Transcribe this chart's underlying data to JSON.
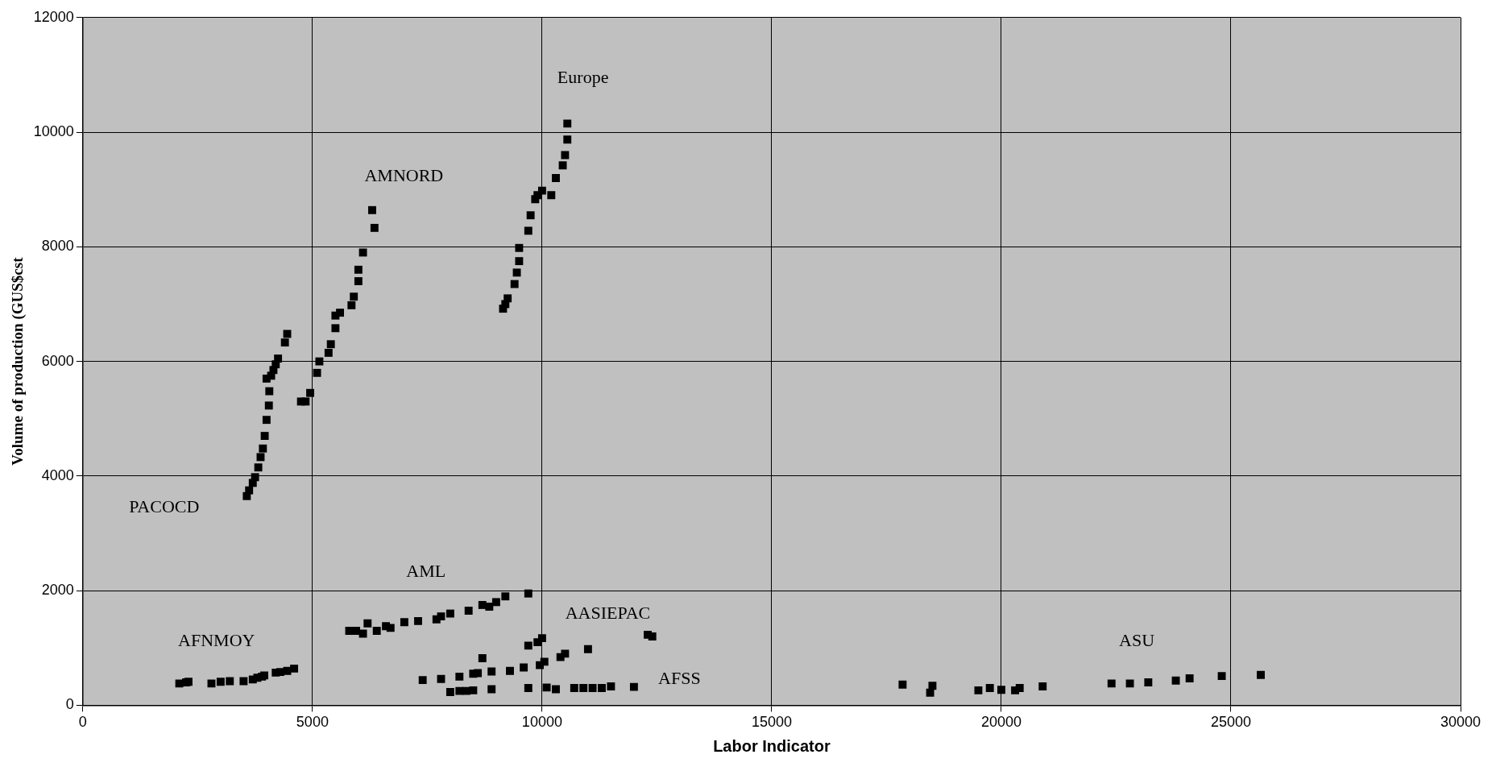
{
  "chart_data": {
    "type": "scatter",
    "xlabel": "Labor Indicator",
    "ylabel": "Volume of production (GUS$cst",
    "xlim": [
      0,
      30000
    ],
    "xticks": [
      0,
      5000,
      10000,
      15000,
      20000,
      25000,
      30000
    ],
    "ylim": [
      0,
      12000
    ],
    "yticks": [
      0,
      2000,
      4000,
      6000,
      8000,
      10000,
      12000
    ],
    "grid": true,
    "marker": "square",
    "series": [
      {
        "color": "#000000",
        "x": [
          3570,
          3620,
          3700,
          3750,
          3820,
          3870,
          3920,
          3960,
          4000,
          4050,
          4060,
          4000,
          4100,
          4150,
          4200,
          4250,
          4400,
          4450,
          4750,
          4850,
          4950,
          5100,
          5150,
          5350,
          5400,
          5500,
          5500,
          5600,
          5850,
          5900,
          6000,
          6000,
          6100,
          6350,
          6300,
          9150,
          9200,
          9250,
          9400,
          9450,
          9500,
          9500,
          9700,
          9750,
          9850,
          9900,
          10000,
          10200,
          10300,
          10450,
          10500,
          10550,
          10550,
          5800,
          5950,
          6100,
          6200,
          6400,
          6600,
          6700,
          7000,
          7300,
          7700,
          7800,
          8000,
          8400,
          8700,
          8850,
          9000,
          9200,
          9700,
          2100,
          2250,
          2300,
          2800,
          3000,
          3200,
          3500,
          3700,
          3800,
          3900,
          3950,
          4200,
          4300,
          4450,
          4600,
          7400,
          7800,
          8200,
          8500,
          8600,
          8700,
          8900,
          9300,
          9600,
          9700,
          9900,
          10000,
          9950,
          10050,
          10400,
          10500,
          11000,
          12300,
          12400,
          8000,
          8200,
          8350,
          8500,
          8900,
          9700,
          10100,
          10300,
          10700,
          10900,
          11100,
          11300,
          11500,
          12000,
          17850,
          18450,
          18500,
          19500,
          19750,
          20000,
          20300,
          20400,
          20900,
          22400,
          22800,
          23200,
          23800,
          24100,
          24800,
          25650
        ],
        "values": [
          3650,
          3750,
          3880,
          3980,
          4150,
          4330,
          4480,
          4700,
          4980,
          5230,
          5480,
          5700,
          5750,
          5850,
          5950,
          6050,
          6330,
          6480,
          5300,
          5300,
          5450,
          5800,
          6000,
          6150,
          6300,
          6580,
          6800,
          6850,
          6980,
          7130,
          7400,
          7600,
          7900,
          8330,
          8640,
          6920,
          7000,
          7100,
          7350,
          7550,
          7750,
          7980,
          8280,
          8550,
          8830,
          8900,
          8980,
          8900,
          9200,
          9420,
          9600,
          9870,
          10150,
          1300,
          1300,
          1250,
          1430,
          1300,
          1380,
          1350,
          1450,
          1470,
          1500,
          1550,
          1600,
          1650,
          1750,
          1720,
          1800,
          1900,
          1950,
          380,
          400,
          410,
          380,
          410,
          420,
          420,
          450,
          480,
          500,
          520,
          570,
          580,
          600,
          640,
          440,
          460,
          500,
          550,
          560,
          820,
          590,
          600,
          660,
          1040,
          1100,
          1170,
          700,
          760,
          840,
          900,
          980,
          1230,
          1200,
          230,
          250,
          250,
          260,
          280,
          300,
          310,
          280,
          300,
          300,
          300,
          300,
          330,
          320,
          360,
          220,
          340,
          260,
          300,
          270,
          260,
          300,
          330,
          380,
          380,
          400,
          430,
          470,
          510,
          530
        ]
      }
    ],
    "annotations": [
      "Europe",
      "AMNORD",
      "PACOCD",
      "AML",
      "AASIEPAC",
      "AFNMOY",
      "AFSS",
      "ASU"
    ]
  }
}
